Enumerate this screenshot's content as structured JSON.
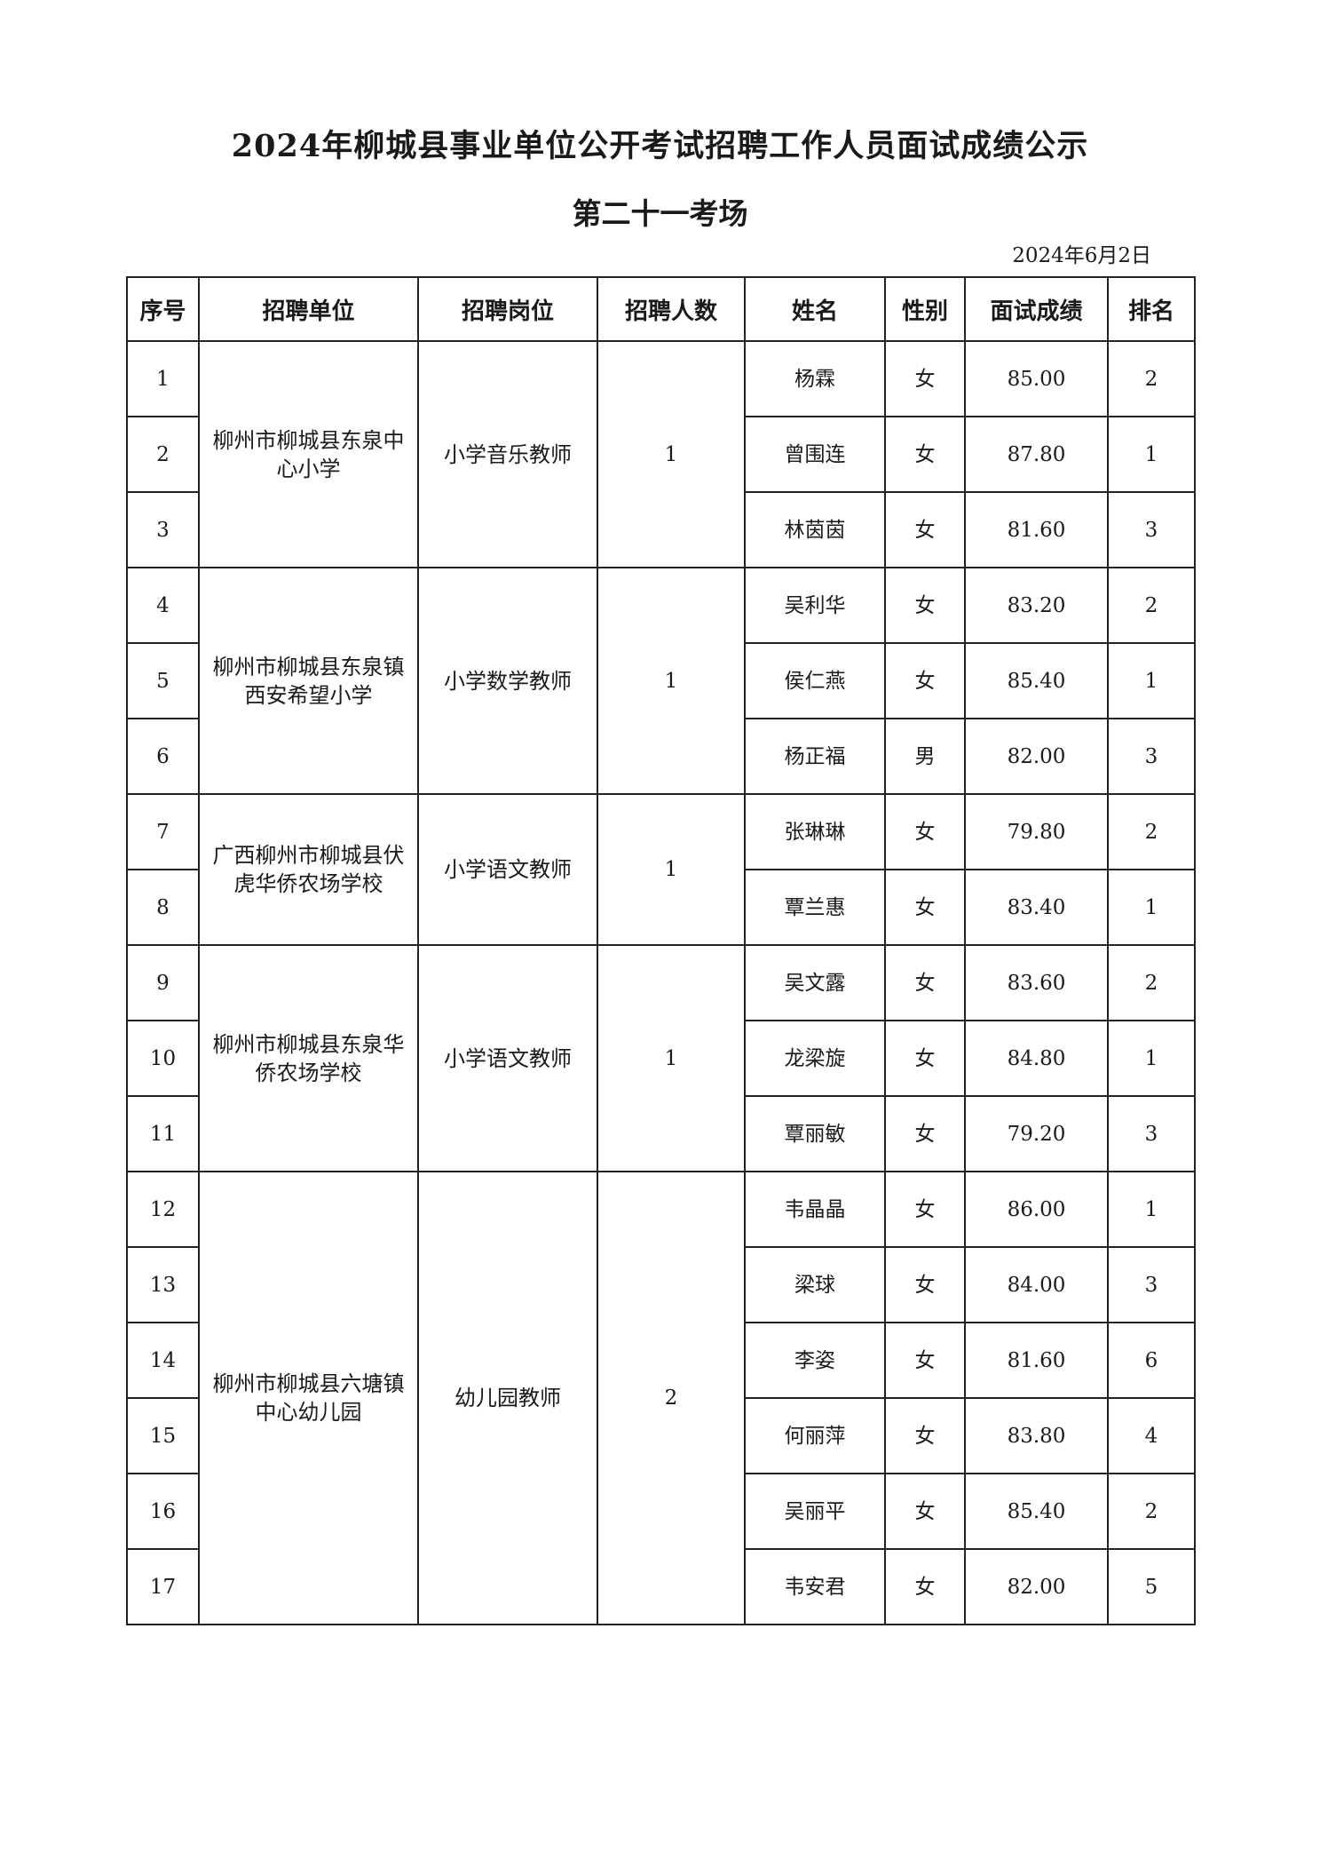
{
  "title": "2024年柳城县事业单位公开考试招聘工作人员面试成绩公示",
  "subtitle": "第二十一考场",
  "date": "2024年6月2日",
  "headers": [
    "序号",
    "招聘单位",
    "招聘岗位",
    "招聘人数",
    "姓名",
    "性别",
    "面试成绩",
    "排名"
  ],
  "groups": [
    {
      "unit": "柳州市柳城县东泉中心小学",
      "position": "小学音乐教师",
      "count": "1",
      "rows": [
        {
          "no": "1",
          "name": "杨霖",
          "gender": "女",
          "score": "85.00",
          "rank": "2"
        },
        {
          "no": "2",
          "name": "曾围连",
          "gender": "女",
          "score": "87.80",
          "rank": "1"
        },
        {
          "no": "3",
          "name": "林茵茵",
          "gender": "女",
          "score": "81.60",
          "rank": "3"
        }
      ]
    },
    {
      "unit": "柳州市柳城县东泉镇西安希望小学",
      "position": "小学数学教师",
      "count": "1",
      "rows": [
        {
          "no": "4",
          "name": "吴利华",
          "gender": "女",
          "score": "83.20",
          "rank": "2"
        },
        {
          "no": "5",
          "name": "侯仁燕",
          "gender": "女",
          "score": "85.40",
          "rank": "1"
        },
        {
          "no": "6",
          "name": "杨正福",
          "gender": "男",
          "score": "82.00",
          "rank": "3"
        }
      ]
    },
    {
      "unit": "广西柳州市柳城县伏虎华侨农场学校",
      "position": "小学语文教师",
      "count": "1",
      "rows": [
        {
          "no": "7",
          "name": "张琳琳",
          "gender": "女",
          "score": "79.80",
          "rank": "2"
        },
        {
          "no": "8",
          "name": "覃兰惠",
          "gender": "女",
          "score": "83.40",
          "rank": "1"
        }
      ]
    },
    {
      "unit": "柳州市柳城县东泉华侨农场学校",
      "position": "小学语文教师",
      "count": "1",
      "rows": [
        {
          "no": "9",
          "name": "吴文露",
          "gender": "女",
          "score": "83.60",
          "rank": "2"
        },
        {
          "no": "10",
          "name": "龙梁旋",
          "gender": "女",
          "score": "84.80",
          "rank": "1"
        },
        {
          "no": "11",
          "name": "覃丽敏",
          "gender": "女",
          "score": "79.20",
          "rank": "3"
        }
      ]
    },
    {
      "unit": "柳州市柳城县六塘镇中心幼儿园",
      "position": "幼儿园教师",
      "count": "2",
      "rows": [
        {
          "no": "12",
          "name": "韦晶晶",
          "gender": "女",
          "score": "86.00",
          "rank": "1"
        },
        {
          "no": "13",
          "name": "梁球",
          "gender": "女",
          "score": "84.00",
          "rank": "3"
        },
        {
          "no": "14",
          "name": "李姿",
          "gender": "女",
          "score": "81.60",
          "rank": "6"
        },
        {
          "no": "15",
          "name": "何丽萍",
          "gender": "女",
          "score": "83.80",
          "rank": "4"
        },
        {
          "no": "16",
          "name": "吴丽平",
          "gender": "女",
          "score": "85.40",
          "rank": "2"
        },
        {
          "no": "17",
          "name": "韦安君",
          "gender": "女",
          "score": "82.00",
          "rank": "5"
        }
      ]
    }
  ]
}
